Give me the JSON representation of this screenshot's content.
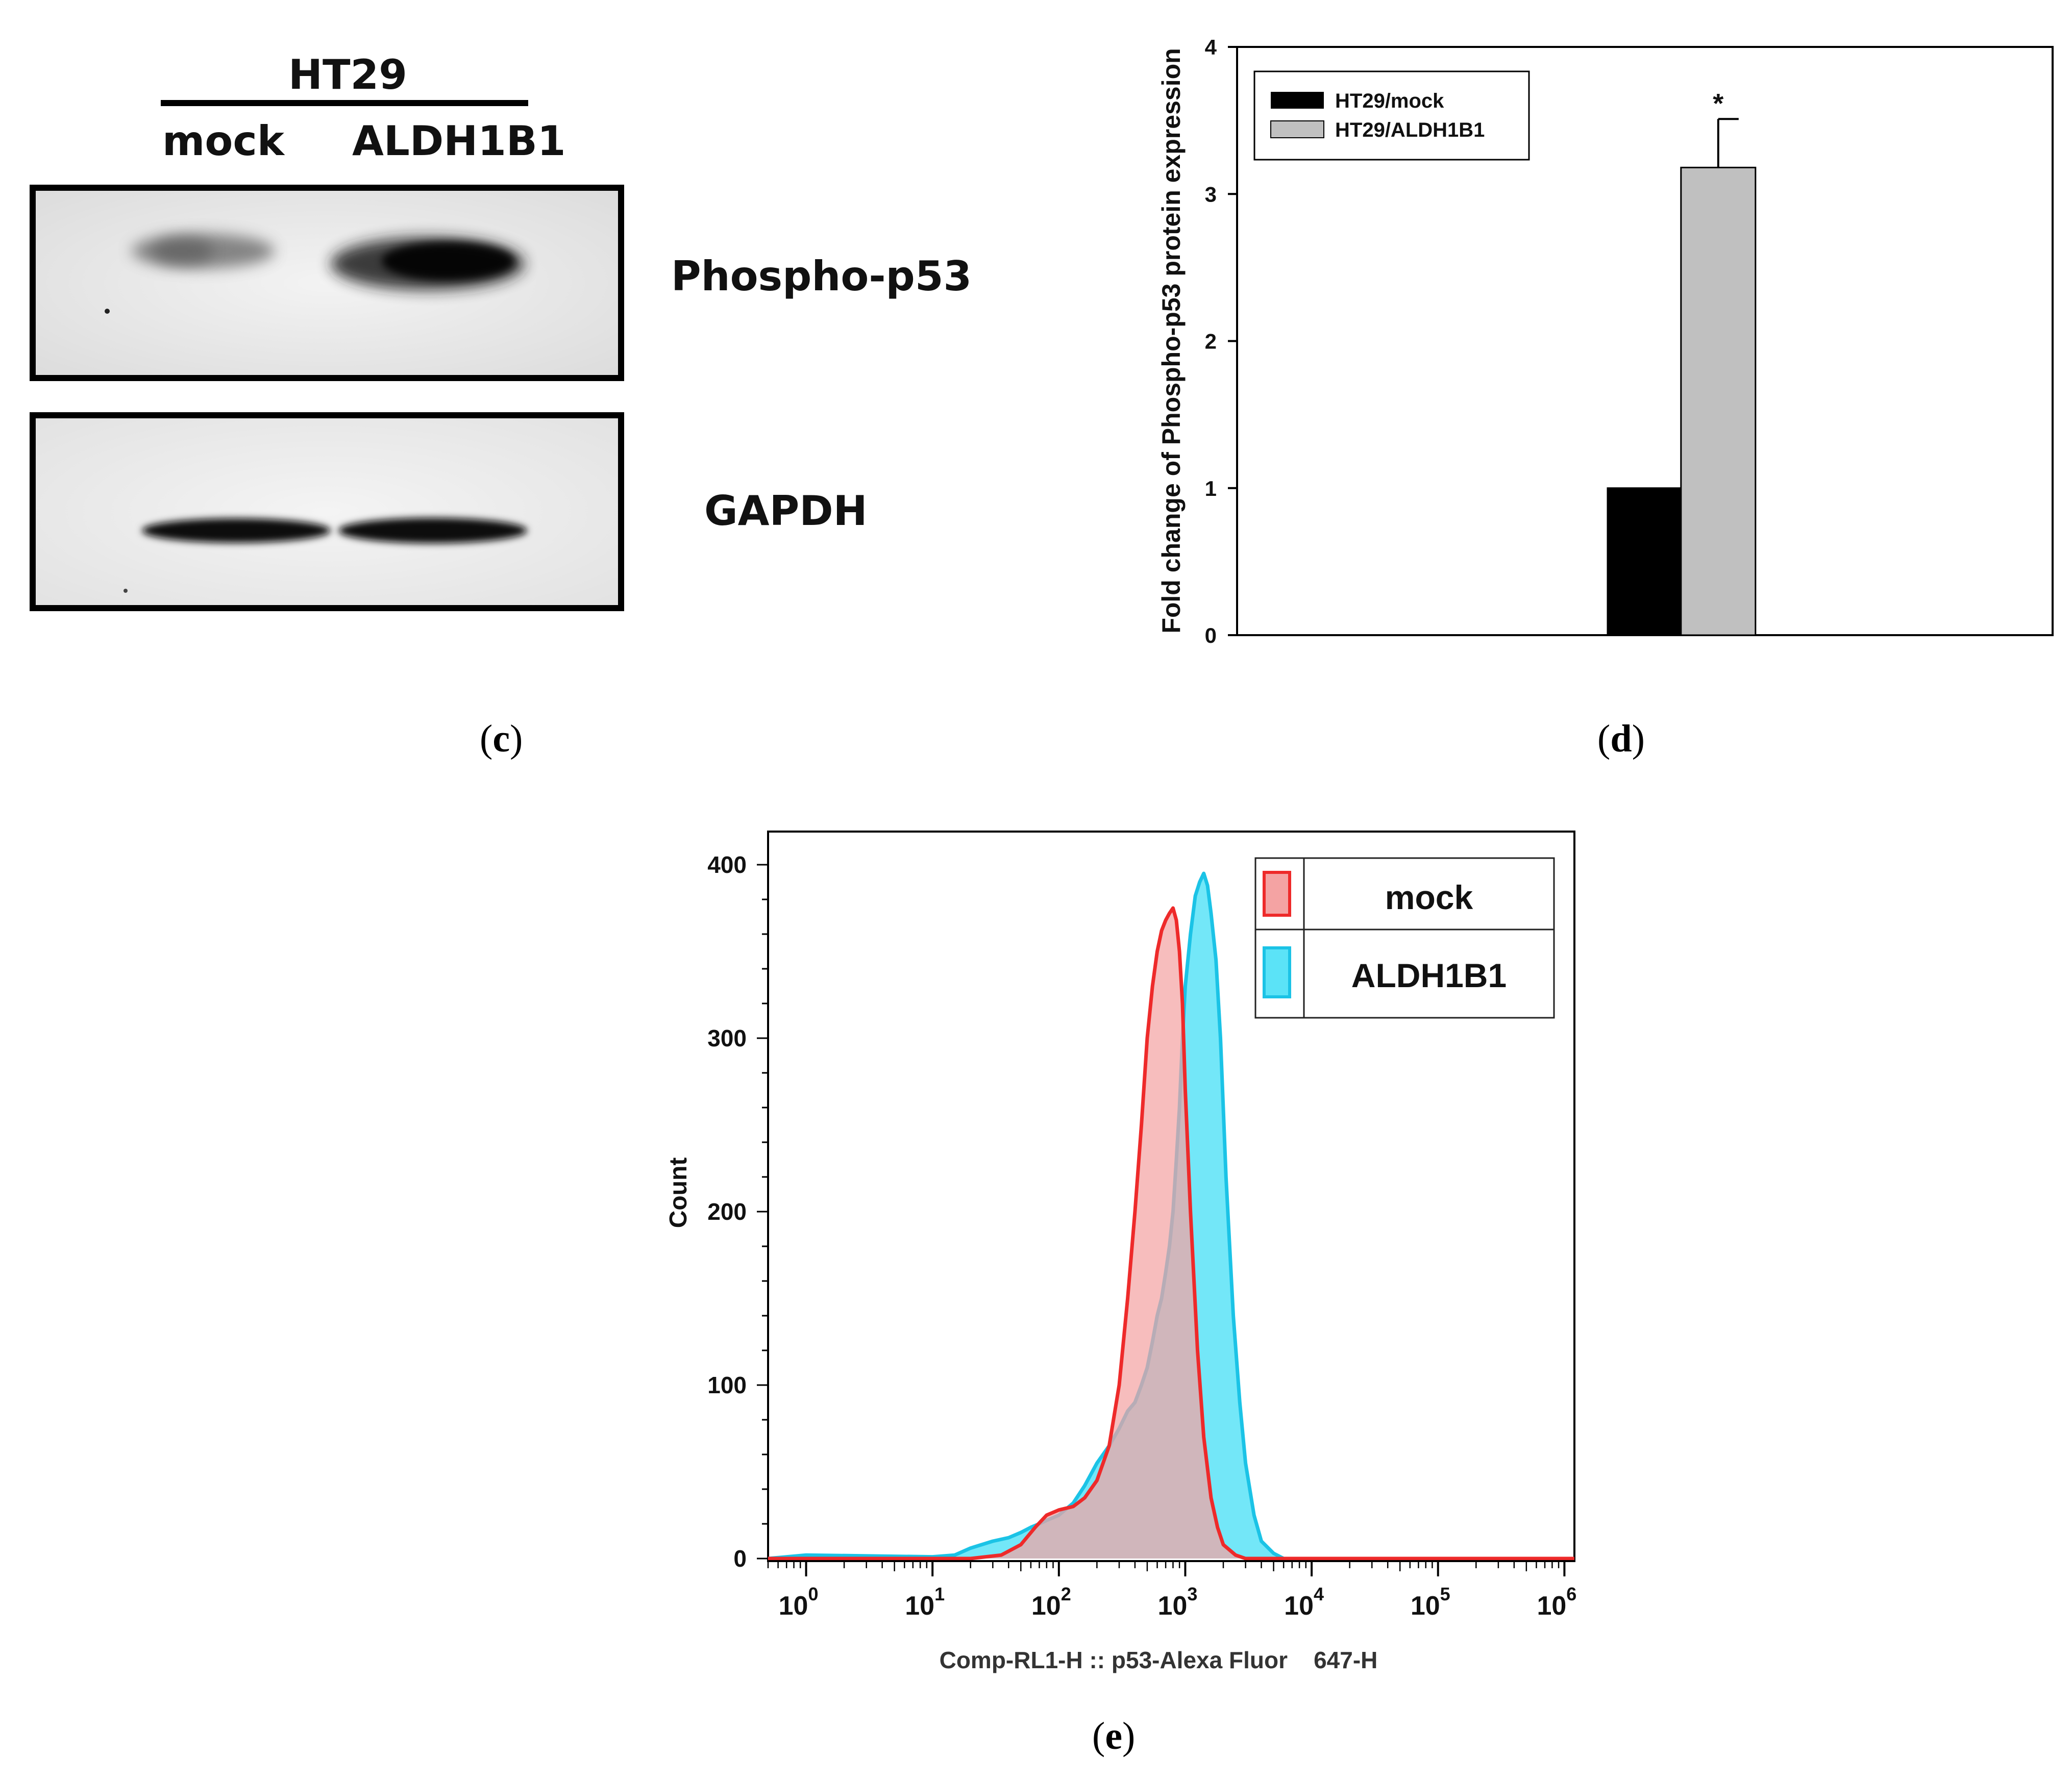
{
  "panels": {
    "c_label": {
      "open": "(",
      "letter": "c",
      "close": ")"
    },
    "d_label": {
      "open": "(",
      "letter": "d",
      "close": ")"
    },
    "e_label": {
      "open": "(",
      "letter": "e",
      "close": ")"
    }
  },
  "western_blot": {
    "cell_line": "HT29",
    "lanes": [
      "mock",
      "ALDH1B1"
    ],
    "bands": [
      "Phospho-p53",
      "GAPDH"
    ]
  },
  "colors": {
    "mock_bar": "#000000",
    "aldh_bar": "#c0c0c0",
    "mock_hist_stroke": "#ee2a2a",
    "mock_hist_fill": "#f4a3a3",
    "aldh_hist_stroke": "#1bc3e6",
    "aldh_hist_fill": "#5be3f7"
  },
  "chart_data": [
    {
      "type": "bar",
      "categories": [
        "HT29/mock",
        "HT29/ALDH1B1"
      ],
      "values": [
        1.0,
        3.18
      ],
      "error_bars": [
        0,
        0.33
      ],
      "significance": [
        "",
        "*"
      ],
      "title": "",
      "xlabel": "",
      "ylabel": "Fold change of Phospho-p53 protein expression",
      "ylim": [
        0,
        4
      ],
      "yticks": [
        "0",
        "1",
        "2",
        "3",
        "4"
      ],
      "legend": [
        "HT29/mock",
        "HT29/ALDH1B1"
      ],
      "legend_position": "top-left"
    },
    {
      "type": "area",
      "title": "",
      "xlabel": "Comp-RL1-H :: p53-Alexa Fluor    647-H",
      "ylabel": "Count",
      "xscale": "log",
      "xlim": [
        0.5,
        1200000
      ],
      "ylim": [
        0,
        400
      ],
      "yticks": [
        "0",
        "100",
        "200",
        "300",
        "400"
      ],
      "xticks": [
        {
          "base": "10",
          "exp": "0"
        },
        {
          "base": "10",
          "exp": "1"
        },
        {
          "base": "10",
          "exp": "2"
        },
        {
          "base": "10",
          "exp": "3"
        },
        {
          "base": "10",
          "exp": "4"
        },
        {
          "base": "10",
          "exp": "5"
        },
        {
          "base": "10",
          "exp": "6"
        }
      ],
      "legend": [
        "mock",
        "ALDH1B1"
      ],
      "legend_position": "top-right",
      "series": [
        {
          "name": "mock",
          "x": [
            0.5,
            1,
            10,
            20,
            35,
            50,
            65,
            80,
            100,
            130,
            160,
            200,
            250,
            300,
            350,
            400,
            450,
            500,
            550,
            600,
            650,
            700,
            750,
            800,
            850,
            900,
            950,
            1000,
            1100,
            1250,
            1400,
            1600,
            1800,
            2000,
            2500,
            3000,
            5000,
            10000,
            1200000
          ],
          "y": [
            0,
            0,
            0,
            0,
            2,
            8,
            18,
            25,
            28,
            30,
            35,
            45,
            65,
            100,
            150,
            200,
            250,
            300,
            330,
            350,
            362,
            368,
            372,
            375,
            368,
            350,
            320,
            270,
            200,
            120,
            70,
            35,
            18,
            8,
            2,
            0,
            0,
            0,
            0
          ]
        },
        {
          "name": "ALDH1B1",
          "x": [
            0.5,
            1,
            10,
            15,
            20,
            30,
            40,
            50,
            60,
            70,
            80,
            100,
            130,
            160,
            200,
            250,
            300,
            350,
            400,
            450,
            500,
            550,
            600,
            650,
            700,
            750,
            800,
            850,
            900,
            950,
            1000,
            1100,
            1200,
            1300,
            1400,
            1500,
            1600,
            1750,
            1900,
            2100,
            2400,
            2700,
            3000,
            3500,
            4000,
            5000,
            6000,
            10000,
            1200000
          ],
          "y": [
            0,
            2,
            1,
            2,
            6,
            10,
            12,
            15,
            18,
            20,
            22,
            25,
            32,
            42,
            55,
            65,
            75,
            85,
            90,
            100,
            110,
            125,
            140,
            150,
            165,
            180,
            200,
            230,
            260,
            300,
            330,
            360,
            382,
            390,
            395,
            388,
            372,
            345,
            300,
            220,
            140,
            90,
            55,
            25,
            10,
            3,
            0,
            0,
            0
          ]
        }
      ]
    }
  ]
}
